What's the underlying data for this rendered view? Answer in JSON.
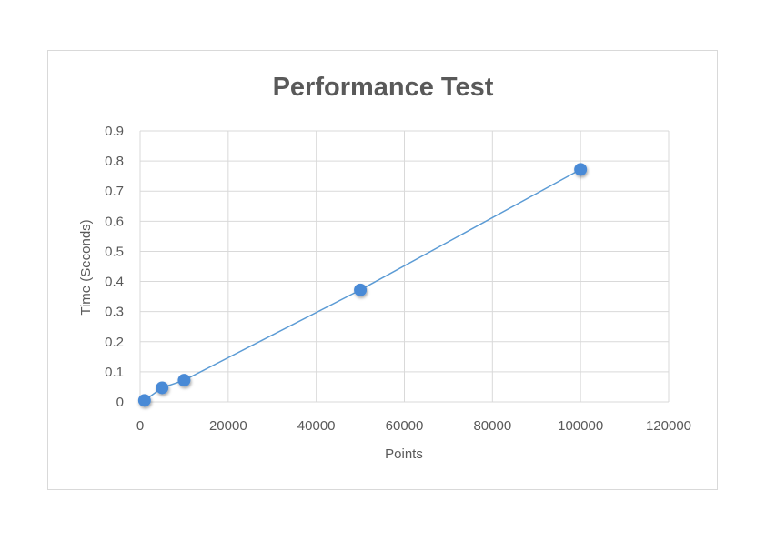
{
  "chart_data": {
    "type": "scatter",
    "title": "Performance Test",
    "xlabel": "Points",
    "ylabel": "Time (Seconds)",
    "xlim": [
      0,
      120000
    ],
    "ylim": [
      0,
      0.9
    ],
    "x_ticks": [
      "0",
      "20000",
      "40000",
      "60000",
      "80000",
      "100000",
      "120000"
    ],
    "y_ticks": [
      "0",
      "0.1",
      "0.2",
      "0.3",
      "0.4",
      "0.5",
      "0.6",
      "0.7",
      "0.8",
      "0.9"
    ],
    "x_tick_values": [
      0,
      20000,
      40000,
      60000,
      80000,
      100000,
      120000
    ],
    "y_tick_values": [
      0,
      0.1,
      0.2,
      0.3,
      0.4,
      0.5,
      0.6,
      0.7,
      0.8,
      0.9
    ],
    "grid": true,
    "legend": "none",
    "series": [
      {
        "x": [
          1000,
          5000,
          10000,
          50000,
          100000
        ],
        "y": [
          0.005,
          0.047,
          0.072,
          0.372,
          0.772
        ],
        "color": "#5b9bd5",
        "marker_color": "#4a8ad6",
        "line": true
      }
    ],
    "gridline_color": "#d9d9d9"
  }
}
